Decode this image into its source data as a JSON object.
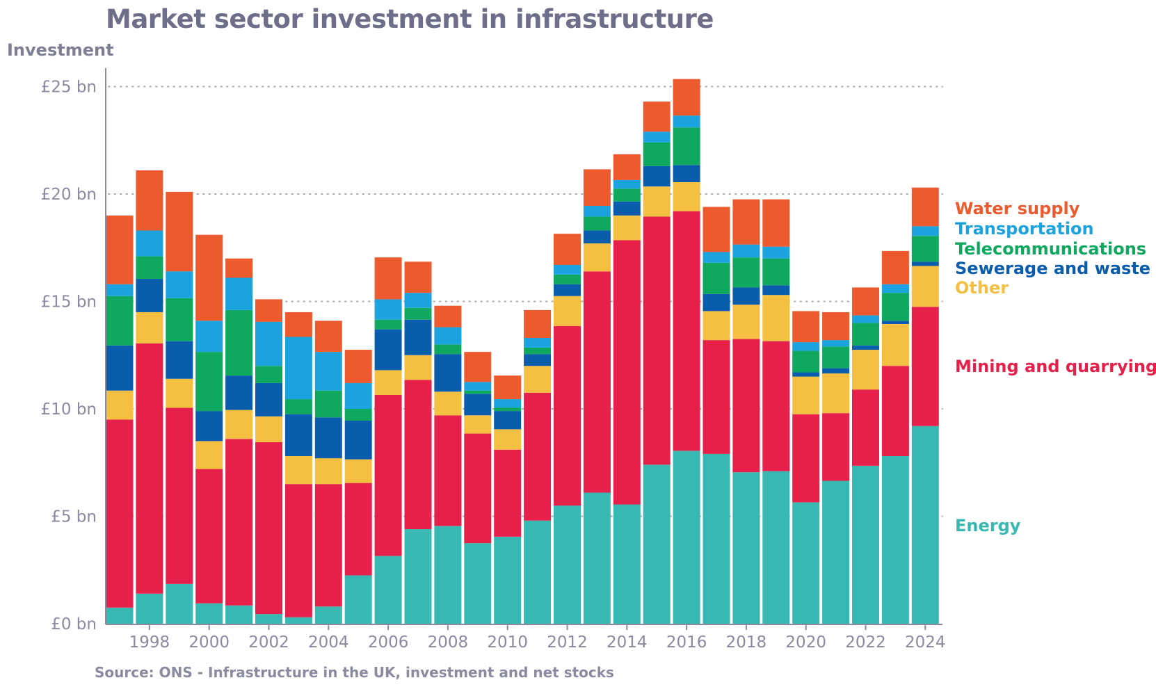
{
  "chart_data": {
    "type": "bar",
    "stacked": true,
    "title": "Market sector investment in infrastructure",
    "ylabel": "Investment",
    "xlabel": "",
    "source": "Source: ONS - Infrastructure in the UK, investment and net stocks",
    "ylim": [
      0,
      25
    ],
    "yticks": [
      0,
      5,
      10,
      15,
      20,
      25
    ],
    "ytick_labels": [
      "£0 bn",
      "£5 bn",
      "£10 bn",
      "£15 bn",
      "£20 bn",
      "£25 bn"
    ],
    "grid": "horizontal dotted",
    "legend": "right",
    "categories": [
      1997,
      1998,
      1999,
      2000,
      2001,
      2002,
      2003,
      2004,
      2005,
      2006,
      2007,
      2008,
      2009,
      2010,
      2011,
      2012,
      2013,
      2014,
      2015,
      2016,
      2017,
      2018,
      2019,
      2020,
      2021,
      2022,
      2023,
      2024
    ],
    "xtick_labels": [
      "1998",
      "2000",
      "2002",
      "2004",
      "2006",
      "2008",
      "2010",
      "2012",
      "2014",
      "2016",
      "2018",
      "2020",
      "2022",
      "2024"
    ],
    "series": [
      {
        "name": "Energy",
        "color": "#38b8b2",
        "values": [
          0.75,
          1.4,
          1.85,
          0.95,
          0.85,
          0.45,
          0.3,
          0.8,
          2.25,
          3.15,
          4.4,
          4.55,
          3.75,
          4.05,
          4.8,
          5.5,
          6.1,
          5.55,
          7.4,
          8.05,
          7.9,
          7.05,
          7.1,
          5.65,
          6.65,
          7.35,
          7.8,
          9.2
        ]
      },
      {
        "name": "Mining and quarrying",
        "color": "#e6204a",
        "values": [
          8.75,
          11.65,
          8.2,
          6.25,
          7.75,
          8.0,
          6.2,
          5.7,
          4.3,
          7.5,
          6.95,
          5.15,
          5.1,
          4.05,
          5.95,
          8.35,
          10.3,
          12.3,
          11.55,
          11.15,
          5.3,
          6.2,
          6.05,
          4.1,
          3.15,
          3.55,
          4.2,
          5.55
        ]
      },
      {
        "name": "Other",
        "color": "#f5c042",
        "values": [
          1.35,
          1.45,
          1.35,
          1.3,
          1.35,
          1.2,
          1.3,
          1.2,
          1.1,
          1.15,
          1.15,
          1.1,
          0.85,
          0.95,
          1.25,
          1.4,
          1.3,
          1.15,
          1.4,
          1.35,
          1.35,
          1.6,
          2.15,
          1.75,
          1.85,
          1.85,
          1.95,
          1.9
        ]
      },
      {
        "name": "Sewerage and waste",
        "color": "#0a5cad",
        "values": [
          2.1,
          1.55,
          1.75,
          1.4,
          1.6,
          1.55,
          1.95,
          1.9,
          1.8,
          1.9,
          1.65,
          1.75,
          1.0,
          0.85,
          0.55,
          0.55,
          0.6,
          0.65,
          0.95,
          0.8,
          0.8,
          0.8,
          0.45,
          0.2,
          0.25,
          0.2,
          0.15,
          0.2
        ]
      },
      {
        "name": "Telecommunications",
        "color": "#0ea85e",
        "values": [
          2.3,
          1.05,
          2.0,
          2.75,
          3.05,
          0.8,
          0.7,
          1.25,
          0.55,
          0.45,
          0.55,
          0.45,
          0.15,
          0.15,
          0.3,
          0.45,
          0.65,
          0.6,
          1.1,
          1.75,
          1.45,
          1.4,
          1.25,
          1.0,
          1.0,
          1.05,
          1.3,
          1.2
        ]
      },
      {
        "name": "Transportation",
        "color": "#1ba3e0",
        "values": [
          0.55,
          1.2,
          1.25,
          1.45,
          1.5,
          2.05,
          2.9,
          1.8,
          1.2,
          0.95,
          0.7,
          0.8,
          0.4,
          0.4,
          0.45,
          0.45,
          0.5,
          0.4,
          0.5,
          0.55,
          0.5,
          0.6,
          0.55,
          0.4,
          0.3,
          0.35,
          0.4,
          0.45
        ]
      },
      {
        "name": "Water supply",
        "color": "#ec5a2e",
        "values": [
          3.2,
          2.8,
          3.7,
          4.0,
          0.9,
          1.05,
          1.15,
          1.45,
          1.55,
          1.95,
          1.45,
          1.0,
          1.4,
          1.1,
          1.3,
          1.45,
          1.7,
          1.2,
          1.4,
          1.7,
          2.1,
          2.1,
          2.2,
          1.45,
          1.3,
          1.3,
          1.55,
          1.8
        ]
      }
    ],
    "legend_order": [
      "Water supply",
      "Transportation",
      "Telecommunications",
      "Sewerage and waste",
      "Other",
      "Mining and quarrying",
      "Energy"
    ]
  }
}
